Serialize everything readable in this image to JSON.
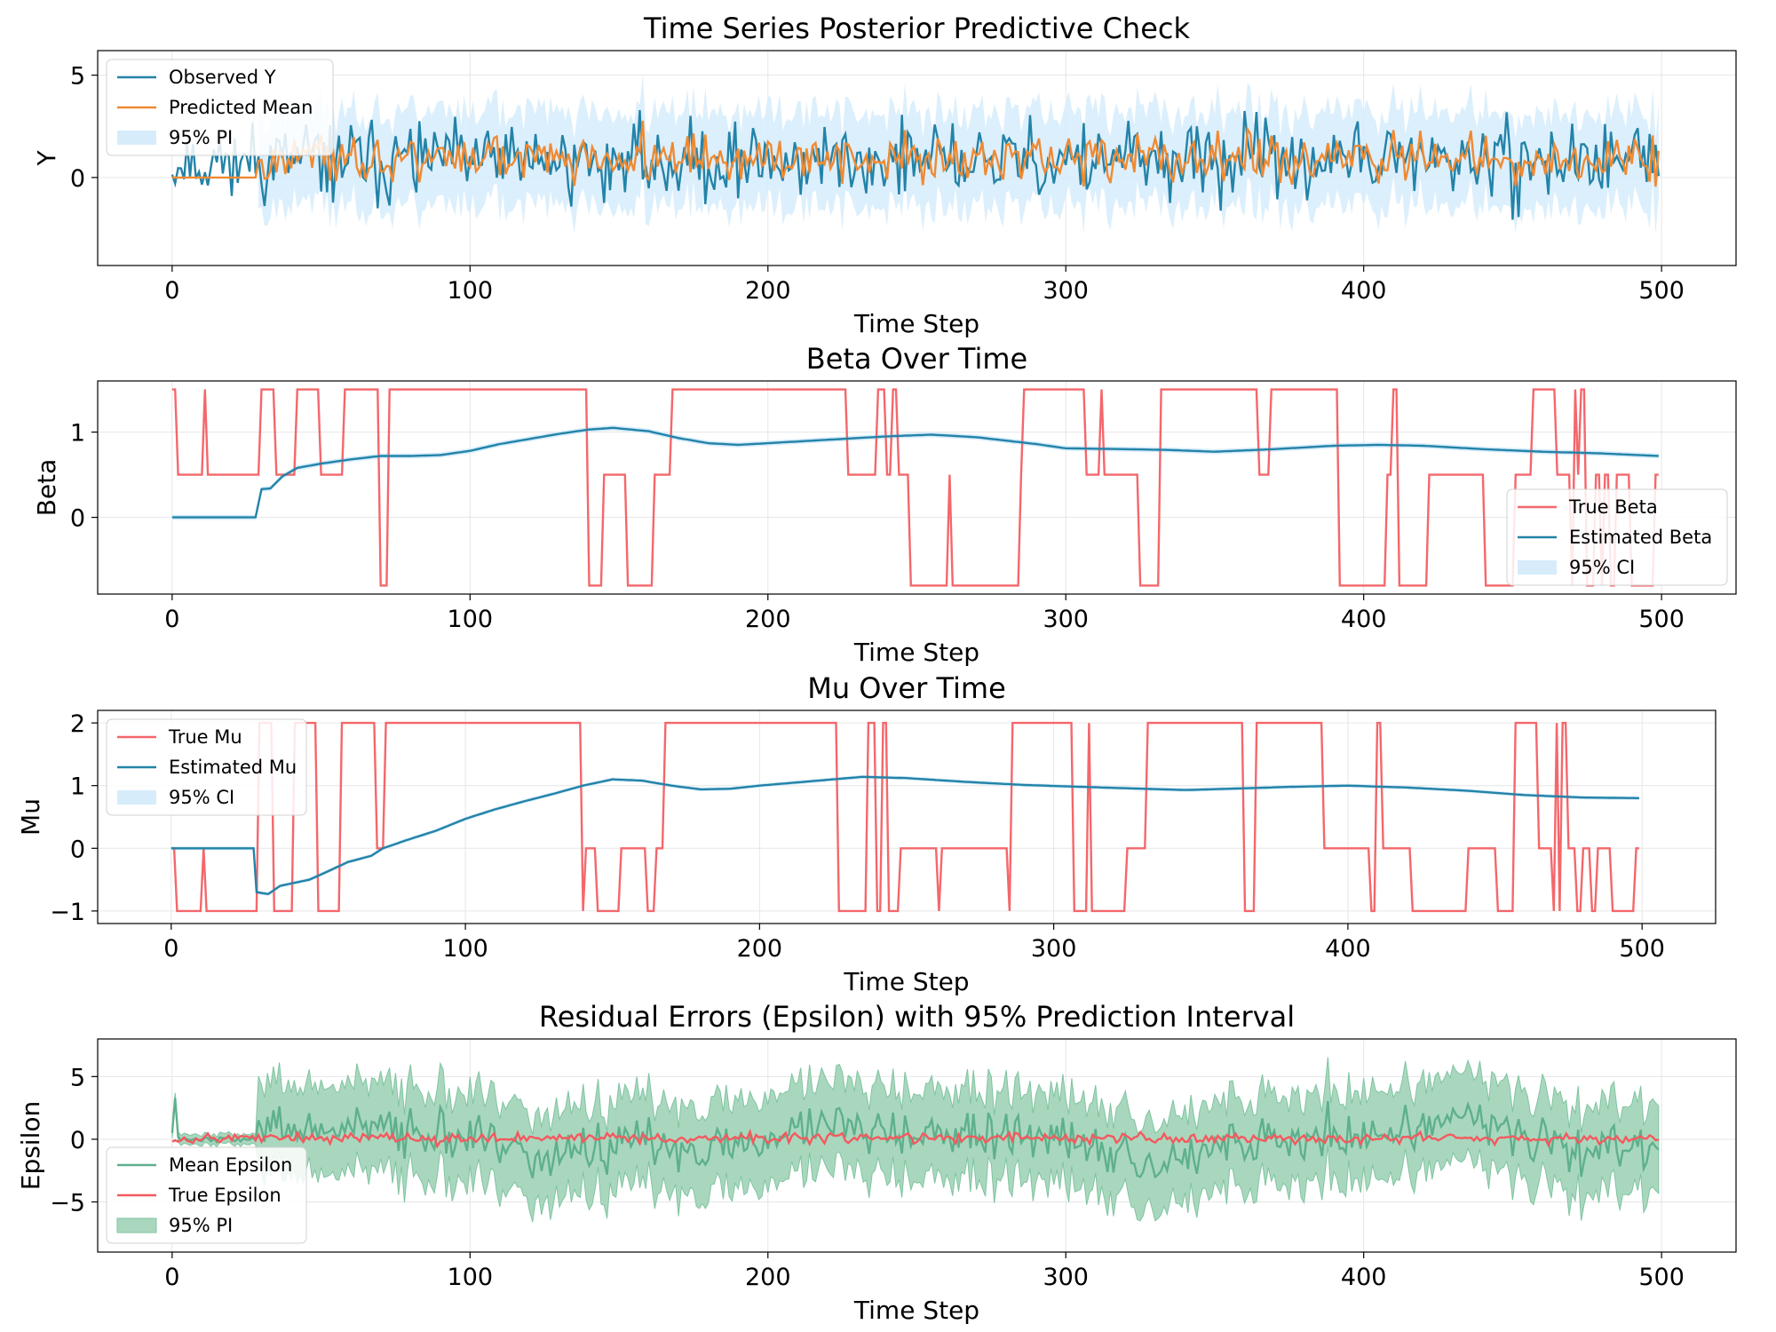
{
  "figure": {
    "xlabel": "Time Step",
    "xticks": [
      "0",
      "100",
      "200",
      "300",
      "400",
      "500"
    ],
    "n_points": 500
  },
  "chart_data": [
    {
      "type": "line",
      "title": "Time Series Posterior Predictive Check",
      "xlabel": "Time Step",
      "ylabel": "Y",
      "xlim": [
        -25,
        525
      ],
      "ylim": [
        -4.3,
        6.2
      ],
      "yticks": [
        0,
        5
      ],
      "ytick_labels": [
        "0",
        "5"
      ],
      "legend_position": "upper-left",
      "series": [
        {
          "name": "Observed Y",
          "kind": "noise",
          "color": "#2383a8",
          "base": 0.8,
          "amp": 1.6,
          "seed": 11
        },
        {
          "name": "Predicted Mean",
          "kind": "noise-lagged",
          "color": "#ef8a32",
          "base": 0.9,
          "amp": 0.8,
          "flat_until": 29,
          "flat_value": 0,
          "seed": 23
        },
        {
          "name": "95% PI",
          "kind": "band",
          "color": "#d6ecfb",
          "width": 2.3,
          "from": 29
        }
      ]
    },
    {
      "type": "line",
      "title": "Beta Over Time",
      "xlabel": "Time Step",
      "ylabel": "Beta",
      "xlim": [
        -25,
        525
      ],
      "ylim": [
        -0.9,
        1.6
      ],
      "yticks": [
        0,
        1
      ],
      "ytick_labels": [
        "0",
        "1"
      ],
      "legend_position": "lower-right",
      "regime_levels": [
        1.5,
        0.5,
        -0.8
      ],
      "regime_changes": [
        [
          0,
          0
        ],
        [
          2,
          1
        ],
        [
          11,
          0
        ],
        [
          12,
          1
        ],
        [
          30,
          0
        ],
        [
          35,
          1
        ],
        [
          42,
          0
        ],
        [
          50,
          1
        ],
        [
          58,
          0
        ],
        [
          70,
          2
        ],
        [
          73,
          0
        ],
        [
          140,
          2
        ],
        [
          145,
          1
        ],
        [
          153,
          2
        ],
        [
          162,
          1
        ],
        [
          168,
          0
        ],
        [
          227,
          1
        ],
        [
          237,
          0
        ],
        [
          240,
          1
        ],
        [
          242,
          0
        ],
        [
          244,
          1
        ],
        [
          248,
          2
        ],
        [
          261,
          1
        ],
        [
          262,
          2
        ],
        [
          285,
          1
        ],
        [
          286,
          0
        ],
        [
          307,
          1
        ],
        [
          312,
          0
        ],
        [
          313,
          1
        ],
        [
          325,
          2
        ],
        [
          332,
          0
        ],
        [
          365,
          1
        ],
        [
          369,
          0
        ],
        [
          392,
          2
        ],
        [
          408,
          1
        ],
        [
          410,
          0
        ],
        [
          412,
          2
        ],
        [
          422,
          1
        ],
        [
          441,
          2
        ],
        [
          451,
          1
        ],
        [
          457,
          0
        ],
        [
          465,
          1
        ],
        [
          470,
          2
        ],
        [
          471,
          0
        ],
        [
          472,
          1
        ],
        [
          473,
          0
        ],
        [
          475,
          2
        ],
        [
          478,
          1
        ],
        [
          480,
          2
        ],
        [
          481,
          1
        ],
        [
          483,
          2
        ],
        [
          485,
          1
        ],
        [
          490,
          2
        ],
        [
          498,
          1
        ]
      ],
      "estimate_knots": [
        [
          0,
          0
        ],
        [
          28,
          0
        ],
        [
          30,
          0.33
        ],
        [
          33,
          0.34
        ],
        [
          37,
          0.48
        ],
        [
          42,
          0.58
        ],
        [
          50,
          0.63
        ],
        [
          60,
          0.68
        ],
        [
          70,
          0.72
        ],
        [
          80,
          0.72
        ],
        [
          90,
          0.73
        ],
        [
          100,
          0.78
        ],
        [
          110,
          0.86
        ],
        [
          120,
          0.92
        ],
        [
          130,
          0.98
        ],
        [
          140,
          1.03
        ],
        [
          148,
          1.05
        ],
        [
          160,
          1.01
        ],
        [
          170,
          0.93
        ],
        [
          180,
          0.87
        ],
        [
          190,
          0.85
        ],
        [
          200,
          0.87
        ],
        [
          220,
          0.91
        ],
        [
          240,
          0.95
        ],
        [
          255,
          0.97
        ],
        [
          270,
          0.94
        ],
        [
          290,
          0.86
        ],
        [
          300,
          0.81
        ],
        [
          320,
          0.8
        ],
        [
          335,
          0.79
        ],
        [
          350,
          0.77
        ],
        [
          370,
          0.8
        ],
        [
          390,
          0.84
        ],
        [
          405,
          0.85
        ],
        [
          420,
          0.84
        ],
        [
          440,
          0.8
        ],
        [
          460,
          0.77
        ],
        [
          480,
          0.75
        ],
        [
          499,
          0.72
        ]
      ],
      "series": [
        {
          "name": "True Beta",
          "color": "#f4676b"
        },
        {
          "name": "Estimated Beta",
          "color": "#2383a8"
        },
        {
          "name": "95% CI",
          "color": "#d6ecfb"
        }
      ]
    },
    {
      "type": "line",
      "title": "Mu Over Time",
      "xlabel": "Time Step",
      "ylabel": "Mu",
      "xlim": [
        -25,
        525
      ],
      "ylim": [
        -1.2,
        2.2
      ],
      "yticks": [
        -1,
        0,
        1,
        2
      ],
      "ytick_labels": [
        "−1",
        "0",
        "1",
        "2"
      ],
      "legend_position": "upper-left",
      "regime_levels": [
        2,
        0,
        -1
      ],
      "regime_changes": [
        [
          0,
          1
        ],
        [
          2,
          2
        ],
        [
          11,
          1
        ],
        [
          12,
          2
        ],
        [
          30,
          0
        ],
        [
          35,
          2
        ],
        [
          42,
          0
        ],
        [
          50,
          2
        ],
        [
          58,
          0
        ],
        [
          70,
          1
        ],
        [
          73,
          0
        ],
        [
          140,
          2
        ],
        [
          141,
          1
        ],
        [
          145,
          2
        ],
        [
          153,
          1
        ],
        [
          162,
          2
        ],
        [
          165,
          1
        ],
        [
          168,
          0
        ],
        [
          227,
          2
        ],
        [
          237,
          0
        ],
        [
          240,
          2
        ],
        [
          242,
          0
        ],
        [
          244,
          2
        ],
        [
          248,
          1
        ],
        [
          261,
          2
        ],
        [
          262,
          1
        ],
        [
          285,
          2
        ],
        [
          286,
          0
        ],
        [
          307,
          2
        ],
        [
          312,
          0
        ],
        [
          313,
          2
        ],
        [
          325,
          1
        ],
        [
          332,
          0
        ],
        [
          365,
          2
        ],
        [
          369,
          0
        ],
        [
          392,
          1
        ],
        [
          408,
          2
        ],
        [
          410,
          0
        ],
        [
          412,
          1
        ],
        [
          422,
          2
        ],
        [
          441,
          1
        ],
        [
          451,
          2
        ],
        [
          457,
          0
        ],
        [
          465,
          1
        ],
        [
          470,
          2
        ],
        [
          471,
          0
        ],
        [
          472,
          2
        ],
        [
          473,
          0
        ],
        [
          475,
          1
        ],
        [
          478,
          2
        ],
        [
          480,
          1
        ],
        [
          483,
          2
        ],
        [
          485,
          1
        ],
        [
          490,
          2
        ],
        [
          498,
          1
        ]
      ],
      "estimate_knots": [
        [
          0,
          0
        ],
        [
          28,
          0
        ],
        [
          29,
          -0.7
        ],
        [
          33,
          -0.73
        ],
        [
          37,
          -0.6
        ],
        [
          42,
          -0.55
        ],
        [
          47,
          -0.5
        ],
        [
          55,
          -0.33
        ],
        [
          60,
          -0.22
        ],
        [
          68,
          -0.12
        ],
        [
          72,
          0
        ],
        [
          80,
          0.13
        ],
        [
          90,
          0.28
        ],
        [
          100,
          0.47
        ],
        [
          110,
          0.62
        ],
        [
          120,
          0.75
        ],
        [
          130,
          0.87
        ],
        [
          140,
          1.0
        ],
        [
          150,
          1.1
        ],
        [
          160,
          1.08
        ],
        [
          170,
          1.0
        ],
        [
          180,
          0.94
        ],
        [
          190,
          0.95
        ],
        [
          200,
          1.0
        ],
        [
          220,
          1.08
        ],
        [
          235,
          1.14
        ],
        [
          250,
          1.12
        ],
        [
          270,
          1.06
        ],
        [
          290,
          1.01
        ],
        [
          310,
          0.98
        ],
        [
          330,
          0.95
        ],
        [
          345,
          0.93
        ],
        [
          360,
          0.95
        ],
        [
          380,
          0.98
        ],
        [
          400,
          1.0
        ],
        [
          420,
          0.97
        ],
        [
          440,
          0.92
        ],
        [
          460,
          0.85
        ],
        [
          480,
          0.81
        ],
        [
          499,
          0.8
        ]
      ],
      "series": [
        {
          "name": "True Mu",
          "color": "#f4676b"
        },
        {
          "name": "Estimated Mu",
          "color": "#2383a8"
        },
        {
          "name": "95% CI",
          "color": "#d6ecfb"
        }
      ]
    },
    {
      "type": "line",
      "title": "Residual Errors (Epsilon) with 95% Prediction Interval",
      "xlabel": "Time Step",
      "ylabel": "Epsilon",
      "xlim": [
        -25,
        525
      ],
      "ylim": [
        -9.0,
        8.0
      ],
      "yticks": [
        -5,
        0,
        5
      ],
      "ytick_labels": [
        "−5",
        "0",
        "5"
      ],
      "legend_position": "lower-left",
      "series": [
        {
          "name": "Mean Epsilon",
          "kind": "noise",
          "color": "#5eb08c",
          "amp": 1.6,
          "seed": 37
        },
        {
          "name": "True Epsilon",
          "kind": "noise",
          "color": "#f4595e",
          "amp": 0.35,
          "seed": 53
        },
        {
          "name": "95% PI",
          "kind": "band",
          "color": "#a9d7be",
          "width": 3.5
        }
      ]
    }
  ]
}
